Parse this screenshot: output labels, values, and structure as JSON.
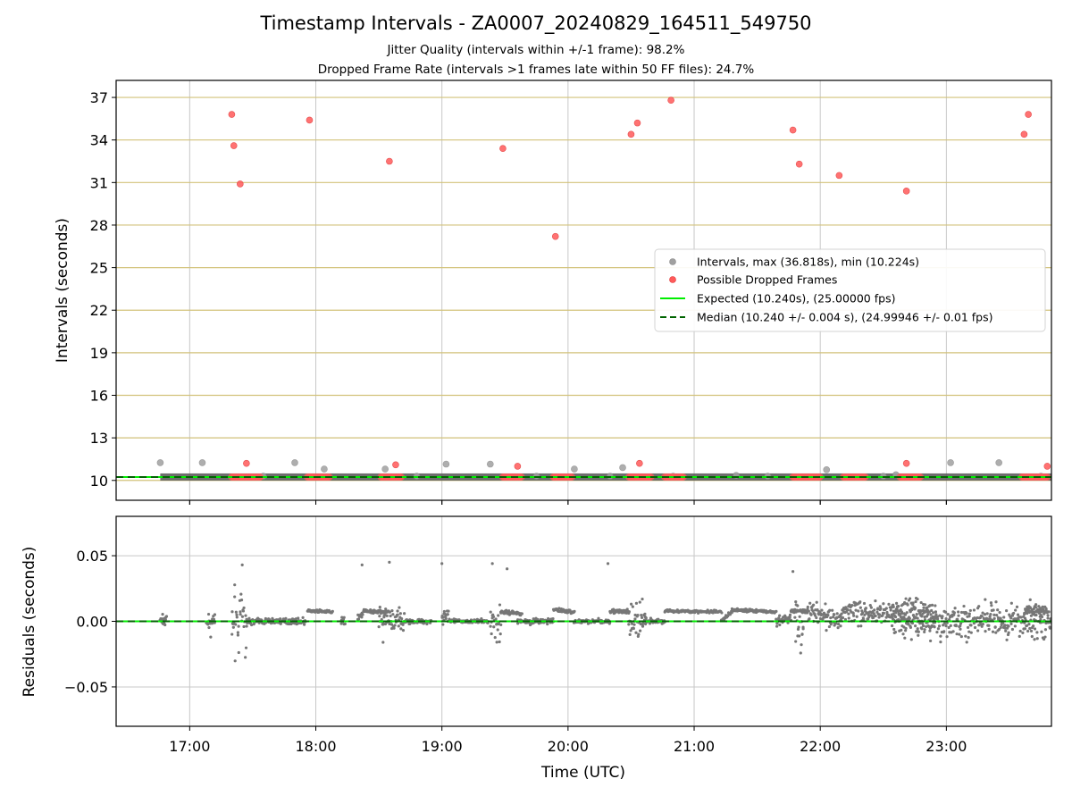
{
  "figure": {
    "title": "Timestamp Intervals - ZA0007_20240829_164511_549750",
    "subtitle_1": "Jitter Quality (intervals within +/-1 frame): 98.2%",
    "subtitle_2": "Dropped Frame Rate (intervals >1 frames late within 50 FF files): 24.7%",
    "xlabel": "Time (UTC)"
  },
  "colors": {
    "intervals": "#a0a0a0",
    "dropped": "#ff5a5a",
    "expected": "#00ee00",
    "median": "#006400",
    "residuals": "#777777",
    "hgrid_top": "#d2c27a",
    "grid": "#c8c8c8",
    "band": "#555555"
  },
  "chart_data": [
    {
      "type": "scatter",
      "panel": "intervals",
      "ylabel": "Intervals (seconds)",
      "xlim": [
        "16:25",
        "23:50"
      ],
      "ylim": [
        8.6,
        38.2
      ],
      "x_ticks": [
        "17:00",
        "18:00",
        "19:00",
        "20:00",
        "21:00",
        "22:00",
        "23:00"
      ],
      "y_ticks": [
        10,
        13,
        16,
        19,
        22,
        25,
        28,
        31,
        34,
        37
      ],
      "grid": "both",
      "legend_position": "center-right",
      "series": [
        {
          "name": "Intervals, max (36.818s), min (10.224s)",
          "style": "gray-dots",
          "points": [
            [
              "16:46",
              11.25
            ],
            [
              "17:06",
              11.25
            ],
            [
              "17:35",
              10.3
            ],
            [
              "17:50",
              11.25
            ],
            [
              "18:04",
              10.8
            ],
            [
              "18:33",
              10.8
            ],
            [
              "18:48",
              10.3
            ],
            [
              "19:02",
              11.15
            ],
            [
              "19:23",
              11.15
            ],
            [
              "19:45",
              10.3
            ],
            [
              "20:03",
              10.8
            ],
            [
              "20:20",
              10.3
            ],
            [
              "20:26",
              10.9
            ],
            [
              "20:50",
              10.3
            ],
            [
              "21:20",
              10.35
            ],
            [
              "21:35",
              10.3
            ],
            [
              "22:03",
              10.75
            ],
            [
              "22:30",
              10.3
            ],
            [
              "22:36",
              10.4
            ],
            [
              "23:02",
              11.25
            ],
            [
              "23:25",
              11.25
            ],
            [
              "23:45",
              10.3
            ]
          ],
          "band_x_range": [
            "16:46",
            "23:50"
          ],
          "band_value": 10.24
        },
        {
          "name": "Possible Dropped Frames",
          "style": "red-dots",
          "points": [
            [
              "17:20",
              35.8
            ],
            [
              "17:21",
              33.6
            ],
            [
              "17:24",
              30.9
            ],
            [
              "17:27",
              11.2
            ],
            [
              "17:57",
              35.4
            ],
            [
              "18:35",
              32.5
            ],
            [
              "18:38",
              11.1
            ],
            [
              "19:29",
              33.4
            ],
            [
              "19:36",
              11.0
            ],
            [
              "19:54",
              27.2
            ],
            [
              "20:30",
              34.4
            ],
            [
              "20:33",
              35.2
            ],
            [
              "20:34",
              11.2
            ],
            [
              "20:49",
              36.8
            ],
            [
              "21:47",
              34.7
            ],
            [
              "21:50",
              32.3
            ],
            [
              "22:09",
              31.5
            ],
            [
              "22:41",
              30.4
            ],
            [
              "22:41",
              11.2
            ],
            [
              "23:37",
              34.4
            ],
            [
              "23:39",
              35.8
            ],
            [
              "23:48",
              11.0
            ]
          ],
          "clusters": [
            [
              "17:20",
              "17:34"
            ],
            [
              "17:56",
              "18:07"
            ],
            [
              "18:31",
              "18:41"
            ],
            [
              "19:29",
              "19:38"
            ],
            [
              "19:53",
              "20:02"
            ],
            [
              "20:29",
              "20:40"
            ],
            [
              "20:46",
              "20:55"
            ],
            [
              "21:47",
              "22:00"
            ],
            [
              "22:11",
              "22:22"
            ],
            [
              "22:38",
              "22:48"
            ],
            [
              "23:36",
              "23:48"
            ]
          ],
          "cluster_value": 10.24
        },
        {
          "name": "Expected (10.240s), (25.00000 fps)",
          "style": "solid-line",
          "value": 10.24
        },
        {
          "name": "Median (10.240 +/- 0.004 s), (24.99946 +/- 0.01 fps)",
          "style": "dashed-line",
          "value": 10.24
        }
      ]
    },
    {
      "type": "scatter",
      "panel": "residuals",
      "ylabel": "Residuals (seconds)",
      "xlabel": "Time (UTC)",
      "xlim": [
        "16:25",
        "23:50"
      ],
      "ylim": [
        -0.08,
        0.08
      ],
      "x_ticks": [
        "17:00",
        "18:00",
        "19:00",
        "20:00",
        "21:00",
        "22:00",
        "23:00"
      ],
      "y_ticks": [
        0.05,
        0.0,
        -0.05
      ],
      "y_tick_labels": [
        "0.05",
        "0.00",
        "−0.05"
      ],
      "grid": "both",
      "outliers": [
        [
          "17:25",
          0.043
        ],
        [
          "18:22",
          0.043
        ],
        [
          "18:35",
          0.045
        ],
        [
          "19:00",
          0.044
        ],
        [
          "19:24",
          0.044
        ],
        [
          "19:31",
          0.04
        ],
        [
          "20:19",
          0.044
        ],
        [
          "21:47",
          0.038
        ],
        [
          "18:32",
          -0.016
        ],
        [
          "17:10",
          -0.012
        ]
      ],
      "segments": [
        {
          "x": [
            "16:46",
            "16:49"
          ],
          "y": [
            0.0,
            0.0
          ],
          "noise": 0.003
        },
        {
          "x": [
            "17:08",
            "17:12"
          ],
          "y": [
            0.0,
            0.0
          ],
          "noise": 0.002
        },
        {
          "x": [
            "17:20",
            "17:27"
          ],
          "y": [
            0.0,
            0.0
          ],
          "noise": 0.011
        },
        {
          "x": [
            "17:27",
            "17:55"
          ],
          "y": [
            0.0,
            0.0
          ],
          "noise": 0.001
        },
        {
          "x": [
            "17:56",
            "18:08"
          ],
          "y": [
            0.008,
            0.007
          ],
          "noise": 0.0006
        },
        {
          "x": [
            "18:12",
            "18:14"
          ],
          "y": [
            0.0,
            0.0
          ],
          "noise": 0.002
        },
        {
          "x": [
            "18:20",
            "18:23"
          ],
          "y": [
            0.002,
            0.008
          ],
          "noise": 0.001
        },
        {
          "x": [
            "18:23",
            "18:35"
          ],
          "y": [
            0.008,
            0.007
          ],
          "noise": 0.0006
        },
        {
          "x": [
            "18:30",
            "18:42"
          ],
          "y": [
            0.0,
            0.0
          ],
          "noise": 0.005
        },
        {
          "x": [
            "18:42",
            "18:55"
          ],
          "y": [
            0.0,
            0.0
          ],
          "noise": 0.0008
        },
        {
          "x": [
            "19:00",
            "19:03"
          ],
          "y": [
            0.002,
            0.008
          ],
          "noise": 0.003
        },
        {
          "x": [
            "19:03",
            "19:22"
          ],
          "y": [
            0.0,
            0.0
          ],
          "noise": 0.0008
        },
        {
          "x": [
            "19:23",
            "19:28"
          ],
          "y": [
            0.0,
            0.0
          ],
          "noise": 0.008
        },
        {
          "x": [
            "19:28",
            "19:38"
          ],
          "y": [
            0.007,
            0.006
          ],
          "noise": 0.0006
        },
        {
          "x": [
            "19:36",
            "19:53"
          ],
          "y": [
            0.0,
            0.0
          ],
          "noise": 0.001
        },
        {
          "x": [
            "19:53",
            "20:03"
          ],
          "y": [
            0.009,
            0.007
          ],
          "noise": 0.0008
        },
        {
          "x": [
            "20:03",
            "20:20"
          ],
          "y": [
            0.0,
            0.0
          ],
          "noise": 0.0008
        },
        {
          "x": [
            "20:20",
            "20:29"
          ],
          "y": [
            0.008,
            0.007
          ],
          "noise": 0.0008
        },
        {
          "x": [
            "20:29",
            "20:37"
          ],
          "y": [
            0.0,
            0.0
          ],
          "noise": 0.008
        },
        {
          "x": [
            "20:37",
            "20:46"
          ],
          "y": [
            0.0,
            0.0
          ],
          "noise": 0.0008
        },
        {
          "x": [
            "20:46",
            "21:13"
          ],
          "y": [
            0.008,
            0.007
          ],
          "noise": 0.0005
        },
        {
          "x": [
            "21:13",
            "21:18"
          ],
          "y": [
            0.0,
            0.007
          ],
          "noise": 0.001
        },
        {
          "x": [
            "21:18",
            "21:39"
          ],
          "y": [
            0.009,
            0.007
          ],
          "noise": 0.0005
        },
        {
          "x": [
            "21:39",
            "21:46"
          ],
          "y": [
            0.0,
            0.003
          ],
          "noise": 0.002
        },
        {
          "x": [
            "21:46",
            "21:54"
          ],
          "y": [
            0.008,
            0.008
          ],
          "noise": 0.0008
        },
        {
          "x": [
            "21:48",
            "21:52"
          ],
          "y": [
            0.0,
            -0.003
          ],
          "noise": 0.009
        },
        {
          "x": [
            "21:54",
            "22:10"
          ],
          "y": [
            0.008,
            0.001
          ],
          "noise": 0.004
        },
        {
          "x": [
            "22:10",
            "22:55"
          ],
          "y": [
            0.008,
            0.006
          ],
          "noise": 0.005
        },
        {
          "x": [
            "22:34",
            "23:50"
          ],
          "y": [
            0.0,
            0.0
          ],
          "noise": 0.006
        },
        {
          "x": [
            "23:37",
            "23:48"
          ],
          "y": [
            0.008,
            0.008
          ],
          "noise": 0.002
        }
      ],
      "series": [
        {
          "name": "Residuals",
          "style": "gray-dots"
        },
        {
          "name": "Expected",
          "style": "solid-line",
          "value": 0.0
        },
        {
          "name": "Median",
          "style": "dashed-line",
          "value": 0.0
        }
      ]
    }
  ]
}
